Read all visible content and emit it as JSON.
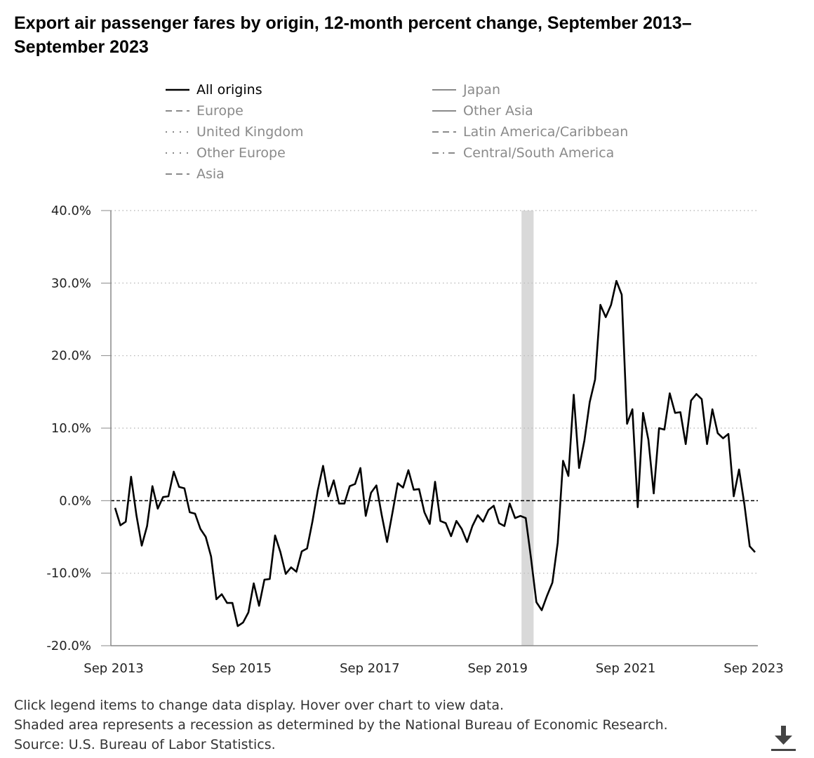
{
  "title": "Export air passenger fares by origin, 12-month percent change, September 2013–September 2023",
  "legend": [
    {
      "label": "All origins",
      "dash": "solid",
      "active": true
    },
    {
      "label": "Europe",
      "dash": "dashed",
      "active": false
    },
    {
      "label": "United Kingdom",
      "dash": "dotted",
      "active": false
    },
    {
      "label": "Other Europe",
      "dash": "dotted",
      "active": false
    },
    {
      "label": "Asia",
      "dash": "dashed",
      "active": false
    },
    {
      "label": "Japan",
      "dash": "solid",
      "active": false
    },
    {
      "label": "Other Asia",
      "dash": "solid",
      "active": false
    },
    {
      "label": "Latin America/Caribbean",
      "dash": "dashed",
      "active": false
    },
    {
      "label": "Central/South America",
      "dash": "dashdot",
      "active": false
    }
  ],
  "notes": [
    "Click legend items to change data display. Hover over chart to view data.",
    "Shaded area represents a recession as determined by the National Bureau of Economic Research.",
    "Source: U.S. Bureau of Labor Statistics."
  ],
  "download": {
    "icon": "download-icon"
  },
  "colors": {
    "line": "#000000",
    "grid": "#bdbdbd",
    "axis": "#888888",
    "recession": "#d9d9d9",
    "legend_inactive": "#8a8a8a"
  },
  "chart_data": {
    "type": "line",
    "title": "Export air passenger fares by origin, 12-month percent change, September 2013–September 2023",
    "xlabel": "",
    "ylabel": "",
    "ylim": [
      -20,
      40
    ],
    "yticks": [
      40,
      30,
      20,
      10,
      0,
      -10,
      -20
    ],
    "ytick_labels": [
      "40.0%",
      "30.0%",
      "20.0%",
      "10.0%",
      "0.0%",
      "-10.0%",
      "-20.0%"
    ],
    "x_start": "Sep 2013",
    "x_end": "Sep 2023",
    "n_months": 121,
    "xticks": [
      0,
      24,
      48,
      72,
      96,
      120
    ],
    "xtick_labels": [
      "Sep 2013",
      "Sep 2015",
      "Sep 2017",
      "Sep 2019",
      "Sep 2021",
      "Sep 2023"
    ],
    "zero_line": 0,
    "recession": {
      "start_month": 77,
      "end_month": 79,
      "label": "Recession"
    },
    "series": [
      {
        "name": "All origins",
        "values": [
          -1.0,
          -3.4,
          -2.9,
          3.3,
          -2.0,
          -6.2,
          -3.5,
          2.0,
          -1.1,
          0.5,
          0.6,
          4.0,
          1.9,
          1.7,
          -1.6,
          -1.8,
          -3.9,
          -5.0,
          -7.7,
          -13.6,
          -12.9,
          -14.1,
          -14.1,
          -17.3,
          -16.8,
          -15.4,
          -11.4,
          -14.5,
          -10.9,
          -10.8,
          -4.8,
          -7.1,
          -10.1,
          -9.2,
          -9.8,
          -7.0,
          -6.6,
          -2.9,
          1.4,
          4.8,
          0.6,
          2.8,
          -0.4,
          -0.4,
          2.0,
          2.3,
          4.5,
          -2.1,
          1.1,
          2.1,
          -2.0,
          -5.7,
          -1.7,
          2.4,
          1.8,
          4.2,
          1.5,
          1.6,
          -1.6,
          -3.2,
          2.6,
          -2.8,
          -3.1,
          -4.9,
          -2.8,
          -3.9,
          -5.7,
          -3.5,
          -2.0,
          -2.9,
          -1.3,
          -0.7,
          -3.1,
          -3.5,
          -0.4,
          -2.4,
          -2.1,
          -2.4,
          -8.0,
          -14.0,
          -15.1,
          -13.1,
          -11.3,
          -5.8,
          5.5,
          3.4,
          14.6,
          4.5,
          8.3,
          13.6,
          16.7,
          27.0,
          25.3,
          27.0,
          30.3,
          28.4,
          10.6,
          12.6,
          -0.9,
          12.1,
          8.4,
          1.0,
          10.0,
          9.8,
          14.8,
          12.1,
          12.2,
          7.8,
          13.8,
          14.7,
          14.0,
          7.8,
          12.6,
          9.3,
          8.6,
          9.2,
          0.6,
          4.3,
          -0.5,
          -6.3,
          -7.1
        ]
      }
    ]
  }
}
